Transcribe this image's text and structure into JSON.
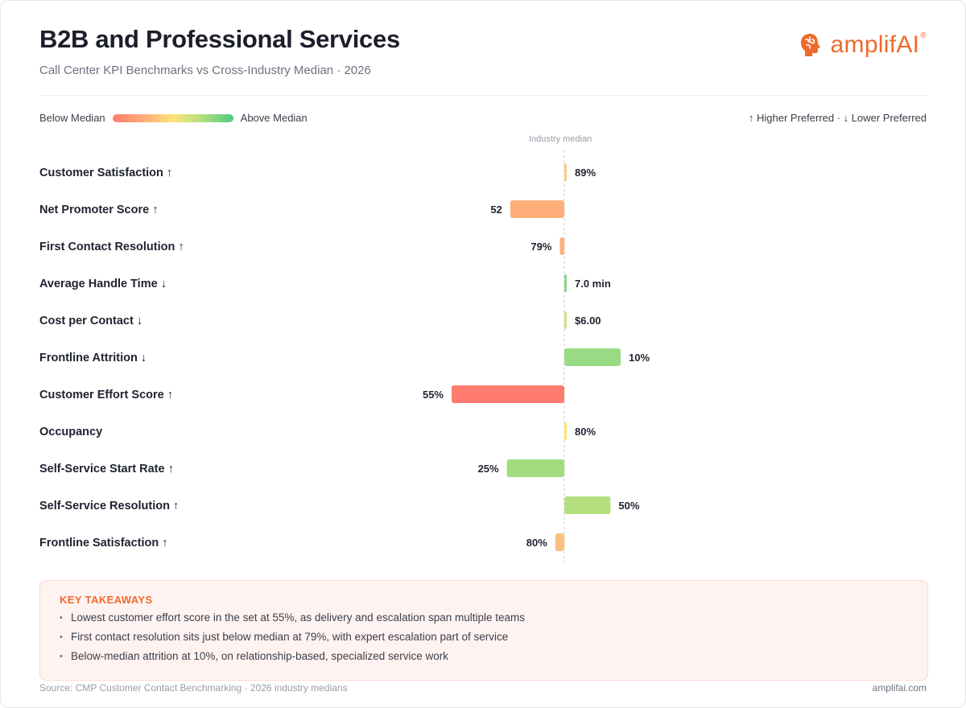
{
  "header": {
    "title": "B2B and Professional Services",
    "subtitle": "Call Center KPI Benchmarks vs Cross-Industry Median · 2026"
  },
  "brand": {
    "logo_text": "amplifAI",
    "logo_mark": "®",
    "accent": "#ef6a2c",
    "logo_icon": "brain-icon"
  },
  "legend": {
    "below_label": "Below Median",
    "above_label": "Above Median",
    "direction_note": "↑ Higher Preferred · ↓ Lower Preferred"
  },
  "chart_data": {
    "type": "bar",
    "orientation": "horizontal-diverging",
    "baseline_label": "Industry median",
    "categories": [
      "Customer Satisfaction ↑",
      "Net Promoter Score ↑",
      "First Contact Resolution ↑",
      "Average Handle Time ↓",
      "Cost per Contact ↓",
      "Frontline Attrition ↓",
      "Customer Effort Score ↑",
      "Occupancy",
      "Self-Service Start Rate ↑",
      "Self-Service Resolution ↑",
      "Frontline Satisfaction ↑"
    ],
    "value_labels": [
      "89%",
      "52",
      "79%",
      "7.0 min",
      "$6.00",
      "10%",
      "55%",
      "80%",
      "25%",
      "50%",
      "80%"
    ],
    "deviation": [
      0.02,
      -0.48,
      -0.04,
      0.015,
      0.015,
      0.5,
      -1.0,
      0.015,
      -0.51,
      0.41,
      -0.08
    ],
    "colors": [
      "#fbc98a",
      "#ffb07a",
      "#ffb07a",
      "#8cd38e",
      "#c7e38d",
      "#99db85",
      "#ff7c6e",
      "#fde47a",
      "#a1dc80",
      "#b6e07f",
      "#fbbf80"
    ],
    "legend_placement": "top"
  },
  "takeaways": {
    "title": "KEY TAKEAWAYS",
    "items": [
      "Lowest customer effort score in the set at 55%, as delivery and escalation span multiple teams",
      "First contact resolution sits just below median at 79%, with expert escalation part of service",
      "Below-median attrition at 10%, on relationship-based, specialized service work"
    ]
  },
  "footer": {
    "source": "Source: CMP Customer Contact Benchmarking · 2026 industry medians",
    "site": "amplifai.com"
  }
}
